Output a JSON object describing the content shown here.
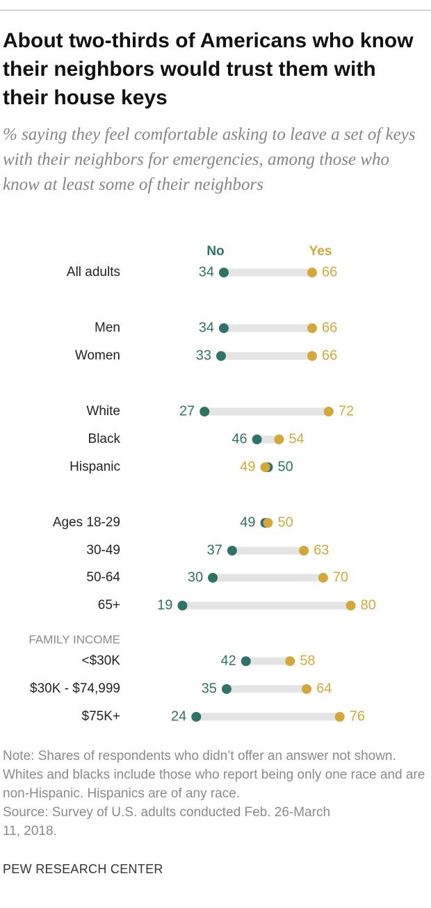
{
  "chart_data": {
    "type": "dot",
    "title": "About two-thirds of Americans who know their neighbors would trust them with their house keys",
    "subtitle": "% saying they feel comfortable asking to leave a set of keys with their neighbors for emergencies, among those who know at least some of their neighbors",
    "categories": [
      "All adults",
      "Men",
      "Women",
      "White",
      "Black",
      "Hispanic",
      "Ages 18-29",
      "30-49",
      "50-64",
      "65+",
      "<$30K",
      "$30K - $74,999",
      "$75K+"
    ],
    "group_label": "FAMILY INCOME",
    "series": [
      {
        "name": "No",
        "color": "#2e7366",
        "values": [
          34,
          34,
          33,
          27,
          46,
          50,
          49,
          37,
          30,
          19,
          42,
          35,
          24
        ]
      },
      {
        "name": "Yes",
        "color": "#d4a73a",
        "values": [
          66,
          66,
          66,
          72,
          54,
          49,
          50,
          63,
          70,
          80,
          58,
          64,
          76
        ]
      }
    ],
    "xlim": [
      0,
      100
    ],
    "note": "Note: Shares of respondents who didn’t offer an answer not shown. Whites and blacks include those who report being only one race and are non-Hispanic. Hispanics are of any race.",
    "source": "Source: Survey of U.S. adults conducted Feb. 26-March 11, 2018.",
    "credit": "PEW RESEARCH CENTER"
  }
}
